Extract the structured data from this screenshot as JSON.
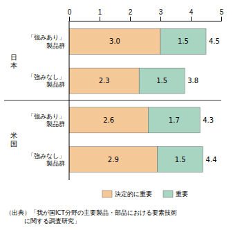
{
  "chart_data": {
    "type": "bar",
    "orientation": "horizontal",
    "stacked": true,
    "data_labels": true,
    "legend": "bottom",
    "categories": [
      "「強みあり」\n製品群",
      "「強みなし」\n製品群",
      "「強みあり」\n製品群",
      "「強みなし」\n製品群"
    ],
    "category_groups": [
      "日\n本",
      "日\n本",
      "米\n国",
      "米\n国"
    ],
    "series": [
      {
        "name": "決定的に重要",
        "color": "#F5C897",
        "values": [
          3.0,
          2.3,
          2.6,
          2.9
        ],
        "value_labels": [
          "3.0",
          "2.3",
          "2.6",
          "2.9"
        ]
      },
      {
        "name": "重要",
        "color": "#A8D5C2",
        "values": [
          1.5,
          1.5,
          1.7,
          1.5
        ],
        "value_labels": [
          "1.5",
          "1.5",
          "1.7",
          "1.5"
        ]
      }
    ],
    "totals": [
      4.5,
      3.8,
      4.3,
      4.4
    ],
    "xlim": [
      0,
      5
    ],
    "xticks": [
      0,
      1,
      2,
      3,
      4,
      5
    ],
    "source": [
      "（出典）「我が国ICT分野の主要製品・部品における要素技術",
      "　　　に関する調査研究」"
    ]
  }
}
